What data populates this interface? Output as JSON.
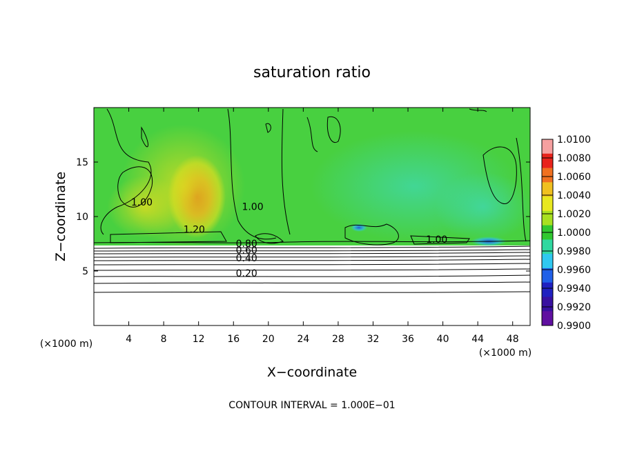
{
  "chart_data": {
    "type": "heatmap",
    "title": "saturation ratio",
    "xlabel": "X−coordinate",
    "ylabel": "Z−coordinate",
    "x_unit_left": "(×1000 m)",
    "x_unit_right": "(×1000 m)",
    "footer": "CONTOUR INTERVAL = 1.000E−01",
    "xlim": [
      0,
      50
    ],
    "ylim": [
      0,
      20
    ],
    "x_ticks": [
      4,
      8,
      12,
      16,
      20,
      24,
      28,
      32,
      36,
      40,
      44,
      48
    ],
    "y_ticks": [
      5,
      10,
      15
    ],
    "colorbar": {
      "ticks": [
        "1.0100",
        "1.0080",
        "1.0060",
        "1.0040",
        "1.0020",
        "1.0000",
        "0.9980",
        "0.9960",
        "0.9940",
        "0.9920",
        "0.9900"
      ],
      "colors": [
        "#f6a0a0",
        "#e8231c",
        "#f07020",
        "#f0c020",
        "#e8e820",
        "#a8e020",
        "#30c830",
        "#30d8a0",
        "#30c8f0",
        "#2060e8",
        "#2020c0",
        "#3810a0",
        "#6010a0"
      ]
    },
    "contour_labels": [
      {
        "text": "1.00",
        "x": 5.5,
        "z": 11.0
      },
      {
        "text": "1.20",
        "x": 11.5,
        "z": 8.5
      },
      {
        "text": "1.00",
        "x": 18.2,
        "z": 10.6
      },
      {
        "text": "1.00",
        "x": 39.3,
        "z": 7.6
      },
      {
        "text": "0.80",
        "x": 17.5,
        "z": 7.2
      },
      {
        "text": "0.60",
        "x": 17.5,
        "z": 6.6
      },
      {
        "text": "0.40",
        "x": 17.5,
        "z": 5.9
      },
      {
        "text": "0.20",
        "x": 17.5,
        "z": 4.5
      }
    ]
  }
}
